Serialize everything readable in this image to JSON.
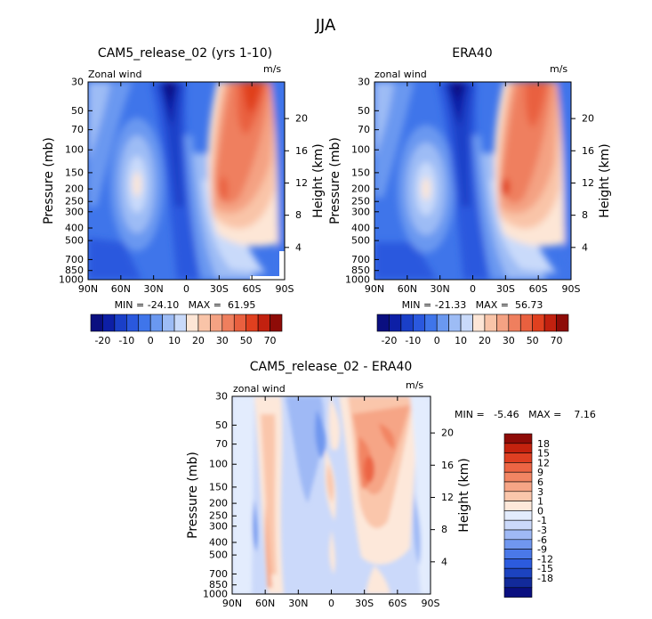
{
  "figure_title": "JJA",
  "chart_data": [
    {
      "type": "heatmap",
      "title": "CAM5_release_02 (yrs 1-10)",
      "variable_label": "Zonal wind",
      "units": "m/s",
      "ylabel": "Pressure (mb)",
      "right_label": "Height (km)",
      "x_ticks": [
        "90N",
        "60N",
        "30N",
        "0",
        "30S",
        "60S",
        "90S"
      ],
      "y_ticks": [
        "30",
        "50",
        "70",
        "100",
        "150",
        "200",
        "250",
        "300",
        "400",
        "500",
        "700",
        "850",
        "1000"
      ],
      "height_ticks": [
        "20",
        "16",
        "12",
        "8",
        "4"
      ],
      "stats": "MIN = -24.10   MAX =  61.95",
      "min": -24.1,
      "max": 61.95,
      "colorbar_labels": [
        "-20",
        "-10",
        "0",
        "10",
        "20",
        "30",
        "50",
        "70"
      ],
      "colorbar_values": [
        -25,
        -20,
        -15,
        -10,
        -5,
        0,
        5,
        10,
        15,
        20,
        25,
        30,
        40,
        50,
        60,
        70,
        80
      ]
    },
    {
      "type": "heatmap",
      "title": "ERA40",
      "variable_label": "zonal wind",
      "units": "m/s",
      "ylabel": "Pressure (mb)",
      "right_label": "Height (km)",
      "x_ticks": [
        "90N",
        "60N",
        "30N",
        "0",
        "30S",
        "60S",
        "90S"
      ],
      "y_ticks": [
        "30",
        "50",
        "70",
        "100",
        "150",
        "200",
        "250",
        "300",
        "400",
        "500",
        "700",
        "850",
        "1000"
      ],
      "height_ticks": [
        "20",
        "16",
        "12",
        "8",
        "4"
      ],
      "stats": "MIN = -21.33   MAX =  56.73",
      "min": -21.33,
      "max": 56.73,
      "colorbar_labels": [
        "-20",
        "-10",
        "0",
        "10",
        "20",
        "30",
        "50",
        "70"
      ],
      "colorbar_values": [
        -25,
        -20,
        -15,
        -10,
        -5,
        0,
        5,
        10,
        15,
        20,
        25,
        30,
        40,
        50,
        60,
        70,
        80
      ]
    },
    {
      "type": "heatmap",
      "title": "CAM5_release_02 - ERA40",
      "variable_label": "zonal wind",
      "units": "m/s",
      "ylabel": "Pressure (mb)",
      "right_label": "Height (km)",
      "x_ticks": [
        "90N",
        "60N",
        "30N",
        "0",
        "30S",
        "60S",
        "90S"
      ],
      "y_ticks": [
        "30",
        "50",
        "70",
        "100",
        "150",
        "200",
        "250",
        "300",
        "400",
        "500",
        "700",
        "850",
        "1000"
      ],
      "height_ticks": [
        "20",
        "16",
        "12",
        "8",
        "4"
      ],
      "stats": "MIN =   -5.46   MAX =    7.16",
      "min": -5.46,
      "max": 7.16,
      "colorbar_labels": [
        "18",
        "15",
        "12",
        "9",
        "6",
        "3",
        "1",
        "0",
        "-1",
        "-3",
        "-6",
        "-9",
        "-12",
        "-15",
        "-18"
      ]
    }
  ],
  "colors": {
    "full_palette": [
      "#0a0f80",
      "#0d1fa6",
      "#1a3fc8",
      "#2a58de",
      "#3f75ea",
      "#6a98f0",
      "#9dbcf5",
      "#c9dafa",
      "#fde6d6",
      "#f9c4a8",
      "#f4a283",
      "#ef7f5e",
      "#e9603f",
      "#e0401f",
      "#c2210f",
      "#8e0b07"
    ],
    "diff_palette": [
      "#0a0f80",
      "#122a9a",
      "#1c43c0",
      "#2c5bde",
      "#4a78e8",
      "#7097ef",
      "#9fb9f5",
      "#cbd9fa",
      "#e3ecfd",
      "#fde8da",
      "#fac6ab",
      "#f6a586",
      "#f28563",
      "#ec6544",
      "#de3f22",
      "#c4220e",
      "#8e0b07"
    ]
  }
}
